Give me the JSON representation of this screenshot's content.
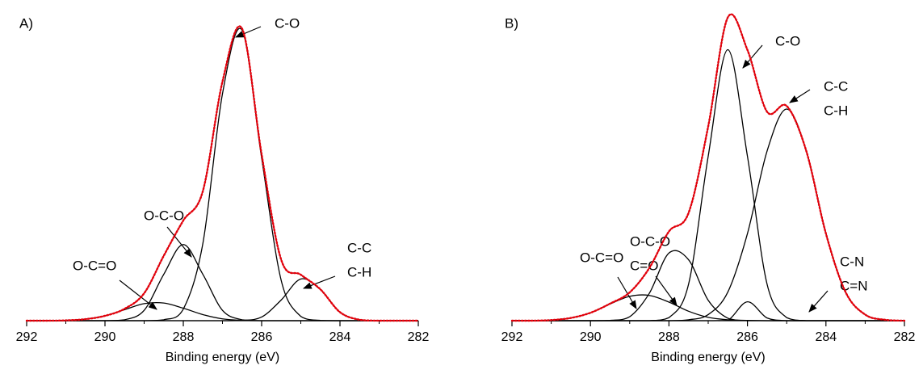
{
  "chart_data": [
    {
      "type": "line",
      "panel_label": "A)",
      "xlabel": "Binding energy (eV)",
      "xlim": [
        292,
        282
      ],
      "ylim": [
        0,
        100
      ],
      "xticks": [
        292,
        290,
        288,
        286,
        284,
        282
      ],
      "xminorticks": [
        291,
        289,
        287,
        285,
        283
      ],
      "x": [
        292,
        291.5,
        291,
        290.5,
        290,
        289.5,
        289,
        288.5,
        288,
        287.5,
        287,
        286.5,
        286,
        285.5,
        285,
        284.5,
        284,
        283.5,
        283,
        282.5,
        282
      ],
      "series": [
        {
          "label": [
            "C-O"
          ],
          "color": "#000000",
          "values": [
            0,
            0,
            0,
            0,
            0,
            0,
            0,
            0.3,
            3.8,
            25.4,
            74.5,
            95.4,
            53.4,
            13.2,
            1.4,
            0.1,
            0,
            0,
            0,
            0,
            0
          ]
        },
        {
          "label": [
            "O-C-O"
          ],
          "color": "#000000",
          "values": [
            0,
            0,
            0,
            0,
            0,
            0.3,
            3.4,
            15.2,
            25,
            15.2,
            3.4,
            0.3,
            0,
            0,
            0,
            0,
            0,
            0,
            0,
            0,
            0
          ]
        },
        {
          "label": [
            "O-C=O"
          ],
          "color": "#000000",
          "values": [
            0,
            0,
            0.1,
            0.5,
            1.6,
            3.6,
            5.6,
            5.8,
            4.1,
            2.0,
            0.6,
            0.1,
            0,
            0,
            0,
            0,
            0,
            0,
            0,
            0,
            0
          ]
        },
        {
          "label": [
            "C-C",
            "C-H"
          ],
          "color": "#000000",
          "values": [
            0,
            0,
            0,
            0,
            0,
            0,
            0,
            0,
            0,
            0,
            0,
            0.1,
            1.2,
            6.8,
            13.7,
            10.2,
            2.8,
            0.3,
            0,
            0,
            0
          ]
        },
        {
          "color": "#000000",
          "values": [
            0,
            0,
            0.1,
            0.5,
            1.6,
            3.9,
            9.0,
            21.3,
            32.9,
            42.6,
            78.5,
            95.9,
            54.6,
            20.0,
            15.1,
            10.3,
            2.8,
            0.3,
            0,
            0,
            0
          ]
        },
        {
          "color": "#e8000b",
          "dash": "dotted",
          "values": [
            0,
            0,
            0.1,
            0.5,
            1.6,
            3.9,
            9.0,
            21.3,
            32.9,
            42.6,
            78.5,
            95.9,
            54.6,
            20.0,
            15.1,
            10.3,
            2.8,
            0.3,
            0,
            0,
            0
          ]
        }
      ]
    },
    {
      "type": "line",
      "panel_label": "B)",
      "xlabel": "Binding energy (eV)",
      "xlim": [
        292,
        282
      ],
      "ylim": [
        0,
        100
      ],
      "xticks": [
        292,
        290,
        288,
        286,
        284,
        282
      ],
      "xminorticks": [
        291,
        289,
        287,
        285,
        283
      ],
      "x": [
        292,
        291.5,
        291,
        290.5,
        290,
        289.5,
        289,
        288.5,
        288,
        287.5,
        287,
        286.5,
        286,
        285.5,
        285,
        284.5,
        284,
        283.5,
        283,
        282.5,
        282
      ],
      "series": [
        {
          "label": [
            "C-O"
          ],
          "color": "#000000",
          "values": [
            0,
            0,
            0,
            0,
            0,
            0,
            0,
            0,
            1.0,
            12.0,
            54.0,
            89,
            54.0,
            12.0,
            1.0,
            0,
            0,
            0,
            0,
            0,
            0
          ]
        },
        {
          "label": [
            "C-C",
            "C-H"
          ],
          "color": "#000000",
          "values": [
            0,
            0,
            0,
            0,
            0,
            0,
            0,
            0,
            0,
            0.3,
            2.0,
            9.4,
            28.6,
            55.7,
            69.5,
            55.7,
            28.6,
            9.4,
            2.0,
            0.3,
            0
          ]
        },
        {
          "label": [
            "O-C-O",
            "C=O"
          ],
          "color": "#000000",
          "values": [
            0,
            0,
            0,
            0,
            0,
            0.1,
            1.3,
            9.0,
            22.2,
            20.0,
            6.7,
            0.8,
            0,
            0,
            0,
            0,
            0,
            0,
            0,
            0,
            0
          ]
        },
        {
          "label": [
            "O-C=O"
          ],
          "color": "#000000",
          "values": [
            0,
            0,
            0.2,
            0.9,
            2.6,
            5.5,
            8.0,
            8.3,
            6.1,
            3.1,
            1.1,
            0.3,
            0.1,
            0,
            0,
            0,
            0,
            0,
            0,
            0,
            0
          ]
        },
        {
          "label": [
            "C-N",
            "C=N"
          ],
          "color": "#000000",
          "values": [
            0,
            0,
            0,
            0,
            0,
            0,
            0,
            0,
            0,
            0,
            0,
            0.1,
            6.2,
            0.9,
            0,
            0,
            0,
            0,
            0,
            0,
            0
          ]
        },
        {
          "color": "#000000",
          "values": [
            0,
            0,
            0.2,
            0.9,
            2.6,
            5.6,
            9.3,
            17.3,
            29.3,
            35.4,
            63.8,
            99.6,
            88.9,
            68.6,
            70.5,
            55.7,
            28.6,
            9.4,
            2.0,
            0.3,
            0
          ]
        },
        {
          "color": "#e8000b",
          "dash": "dotted",
          "values": [
            0,
            0,
            0.2,
            0.9,
            2.6,
            5.6,
            9.3,
            17.3,
            29.3,
            35.4,
            63.8,
            99.6,
            88.9,
            68.6,
            70.5,
            55.7,
            28.6,
            9.4,
            2.0,
            0.3,
            0
          ]
        }
      ]
    }
  ]
}
